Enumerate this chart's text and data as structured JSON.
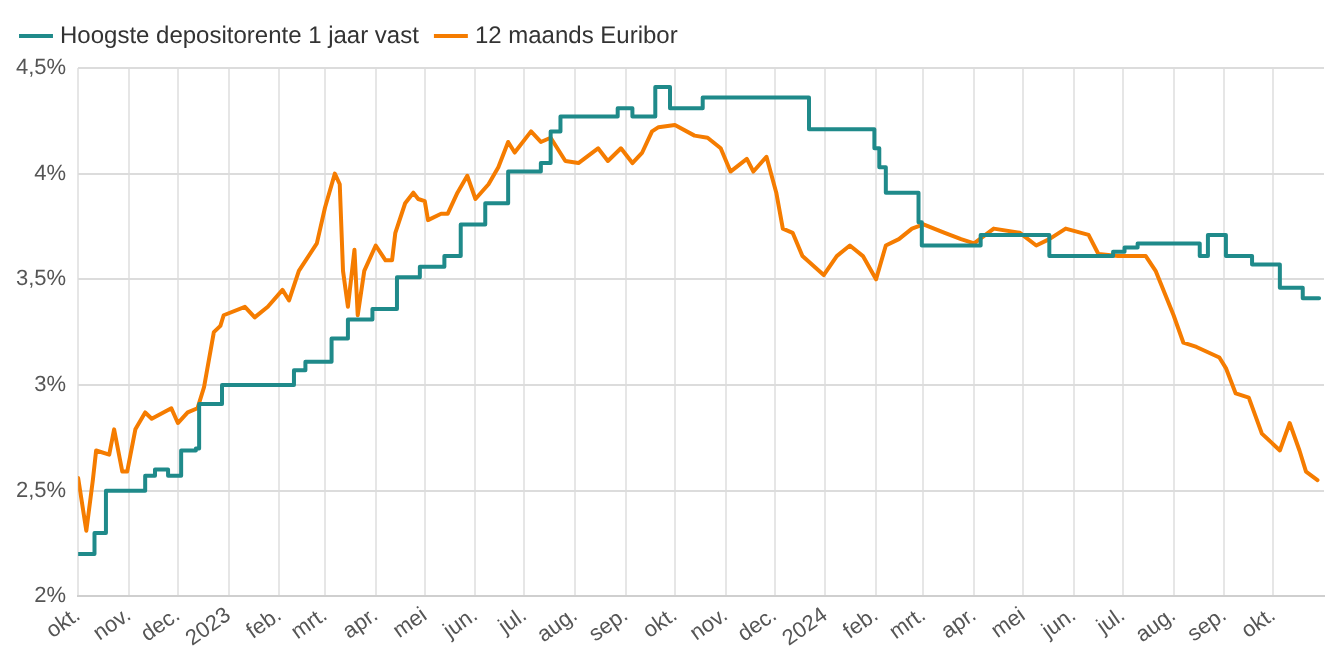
{
  "chart_data": {
    "type": "line",
    "legend": "top left",
    "grid": true,
    "marker": "none",
    "line_style": "solid",
    "xlim": [
      "2022-10-01",
      "2024-11-01"
    ],
    "xticks": [
      {
        "value": "2022-10-01",
        "label": "okt."
      },
      {
        "value": "2022-11-01",
        "label": "nov."
      },
      {
        "value": "2022-12-01",
        "label": "dec."
      },
      {
        "value": "2023-01-01",
        "label": "2023"
      },
      {
        "value": "2023-02-01",
        "label": "feb."
      },
      {
        "value": "2023-03-01",
        "label": "mrt."
      },
      {
        "value": "2023-04-01",
        "label": "apr."
      },
      {
        "value": "2023-05-01",
        "label": "mei"
      },
      {
        "value": "2023-06-01",
        "label": "jun."
      },
      {
        "value": "2023-07-01",
        "label": "jul."
      },
      {
        "value": "2023-08-01",
        "label": "aug."
      },
      {
        "value": "2023-09-01",
        "label": "sep."
      },
      {
        "value": "2023-10-01",
        "label": "okt."
      },
      {
        "value": "2023-11-01",
        "label": "nov."
      },
      {
        "value": "2023-12-01",
        "label": "dec."
      },
      {
        "value": "2024-01-01",
        "label": "2024"
      },
      {
        "value": "2024-02-01",
        "label": "feb."
      },
      {
        "value": "2024-03-01",
        "label": "mrt."
      },
      {
        "value": "2024-04-01",
        "label": "apr."
      },
      {
        "value": "2024-05-01",
        "label": "mei"
      },
      {
        "value": "2024-06-01",
        "label": "jun."
      },
      {
        "value": "2024-07-01",
        "label": "jul."
      },
      {
        "value": "2024-08-01",
        "label": "aug."
      },
      {
        "value": "2024-09-01",
        "label": "sep."
      },
      {
        "value": "2024-10-01",
        "label": "okt."
      }
    ],
    "ylim": [
      2,
      4.5
    ],
    "yticks": [
      {
        "value": 2,
        "label": "2%"
      },
      {
        "value": 2.5,
        "label": "2,5%"
      },
      {
        "value": 3,
        "label": "3%"
      },
      {
        "value": 3.5,
        "label": "3,5%"
      },
      {
        "value": 4,
        "label": "4%"
      },
      {
        "value": 4.5,
        "label": "4,5%"
      }
    ],
    "series": [
      {
        "name": "Hoogste depositorente 1 jaar vast",
        "type": "step",
        "color": "#1f8a8a",
        "x": [
          "2022-10-01",
          "2022-10-11",
          "2022-10-18",
          "2022-11-11",
          "2022-11-17",
          "2022-11-25",
          "2022-12-03",
          "2022-12-12",
          "2022-12-14",
          "2022-12-28",
          "2023-02-10",
          "2023-02-17",
          "2023-03-05",
          "2023-03-15",
          "2023-03-30",
          "2023-04-14",
          "2023-04-28",
          "2023-05-13",
          "2023-05-23",
          "2023-06-07",
          "2023-06-21",
          "2023-07-11",
          "2023-07-17",
          "2023-07-23",
          "2023-08-27",
          "2023-09-05",
          "2023-09-19",
          "2023-09-28",
          "2023-10-18",
          "2023-12-22",
          "2024-01-31",
          "2024-02-03",
          "2024-02-07",
          "2024-02-27",
          "2024-02-29",
          "2024-04-05",
          "2024-05-17",
          "2024-06-25",
          "2024-07-02",
          "2024-07-10",
          "2024-08-17",
          "2024-08-22",
          "2024-09-02",
          "2024-09-18",
          "2024-10-05",
          "2024-10-19",
          "2024-10-29"
        ],
        "values": [
          2.2,
          2.3,
          2.5,
          2.57,
          2.6,
          2.57,
          2.69,
          2.7,
          2.91,
          3.0,
          3.07,
          3.11,
          3.22,
          3.31,
          3.36,
          3.51,
          3.56,
          3.61,
          3.76,
          3.86,
          4.01,
          4.05,
          4.2,
          4.27,
          4.31,
          4.27,
          4.41,
          4.31,
          4.36,
          4.21,
          4.12,
          4.03,
          3.91,
          3.77,
          3.66,
          3.71,
          3.61,
          3.63,
          3.65,
          3.67,
          3.61,
          3.71,
          3.61,
          3.57,
          3.46,
          3.41,
          3.41
        ]
      },
      {
        "name": "12 maands Euribor",
        "color": "#f57c00",
        "x": [
          "2022-10-01",
          "2022-10-06",
          "2022-10-10",
          "2022-10-12",
          "2022-10-20",
          "2022-10-23",
          "2022-10-28",
          "2022-10-31",
          "2022-11-05",
          "2022-11-11",
          "2022-11-15",
          "2022-11-27",
          "2022-12-01",
          "2022-12-07",
          "2022-12-13",
          "2022-12-17",
          "2022-12-23",
          "2022-12-27",
          "2022-12-29",
          "2023-01-11",
          "2023-01-17",
          "2023-01-25",
          "2023-02-03",
          "2023-02-07",
          "2023-02-13",
          "2023-02-24",
          "2023-03-01",
          "2023-03-07",
          "2023-03-10",
          "2023-03-12",
          "2023-03-15",
          "2023-03-19",
          "2023-03-21",
          "2023-03-25",
          "2023-04-01",
          "2023-04-07",
          "2023-04-11",
          "2023-04-13",
          "2023-04-19",
          "2023-04-24",
          "2023-04-27",
          "2023-05-01",
          "2023-05-03",
          "2023-05-11",
          "2023-05-15",
          "2023-05-21",
          "2023-05-27",
          "2023-06-01",
          "2023-06-09",
          "2023-06-15",
          "2023-06-21",
          "2023-06-25",
          "2023-07-05",
          "2023-07-11",
          "2023-07-17",
          "2023-07-26",
          "2023-08-03",
          "2023-08-15",
          "2023-08-21",
          "2023-08-29",
          "2023-09-05",
          "2023-09-11",
          "2023-09-17",
          "2023-09-21",
          "2023-10-01",
          "2023-10-13",
          "2023-10-21",
          "2023-10-29",
          "2023-11-04",
          "2023-11-14",
          "2023-11-18",
          "2023-11-26",
          "2023-12-02",
          "2023-12-06",
          "2023-12-12",
          "2023-12-18",
          "2023-12-31",
          "2024-01-08",
          "2024-01-16",
          "2024-01-24",
          "2024-02-01",
          "2024-02-07",
          "2024-02-15",
          "2024-02-23",
          "2024-03-01",
          "2024-03-14",
          "2024-03-24",
          "2024-04-01",
          "2024-04-13",
          "2024-04-29",
          "2024-05-09",
          "2024-05-17",
          "2024-05-27",
          "2024-06-10",
          "2024-06-16",
          "2024-06-28",
          "2024-07-15",
          "2024-07-21",
          "2024-08-01",
          "2024-08-07",
          "2024-08-15",
          "2024-08-29",
          "2024-09-02",
          "2024-09-08",
          "2024-09-16",
          "2024-09-24",
          "2024-10-05",
          "2024-10-11",
          "2024-10-17",
          "2024-10-21",
          "2024-10-28"
        ],
        "values": [
          2.56,
          2.31,
          2.55,
          2.69,
          2.67,
          2.79,
          2.59,
          2.59,
          2.79,
          2.87,
          2.84,
          2.89,
          2.82,
          2.87,
          2.89,
          2.99,
          3.25,
          3.28,
          3.33,
          3.37,
          3.32,
          3.37,
          3.45,
          3.4,
          3.54,
          3.67,
          3.84,
          4.0,
          3.95,
          3.54,
          3.37,
          3.64,
          3.33,
          3.54,
          3.66,
          3.59,
          3.59,
          3.72,
          3.86,
          3.91,
          3.88,
          3.87,
          3.78,
          3.81,
          3.81,
          3.91,
          3.99,
          3.88,
          3.95,
          4.03,
          4.15,
          4.1,
          4.2,
          4.15,
          4.17,
          4.06,
          4.05,
          4.12,
          4.06,
          4.12,
          4.05,
          4.1,
          4.2,
          4.22,
          4.23,
          4.18,
          4.17,
          4.12,
          4.01,
          4.07,
          4.01,
          4.08,
          3.91,
          3.74,
          3.72,
          3.61,
          3.52,
          3.61,
          3.66,
          3.61,
          3.5,
          3.66,
          3.69,
          3.74,
          3.76,
          3.72,
          3.69,
          3.67,
          3.74,
          3.72,
          3.66,
          3.69,
          3.74,
          3.71,
          3.62,
          3.61,
          3.61,
          3.54,
          3.33,
          3.2,
          3.18,
          3.13,
          3.08,
          2.96,
          2.94,
          2.77,
          2.69,
          2.82,
          2.69,
          2.59,
          2.55
        ]
      }
    ]
  }
}
